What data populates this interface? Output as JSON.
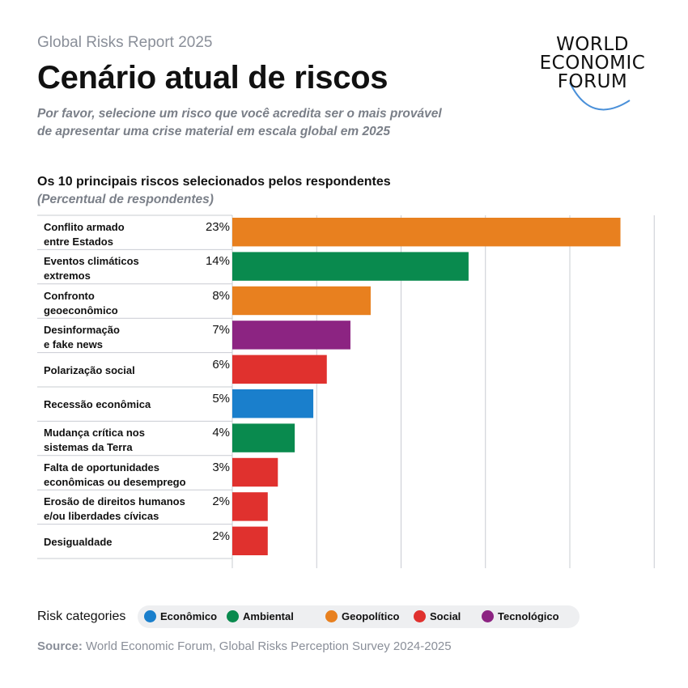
{
  "header": {
    "report": "Global Risks Report 2025",
    "title": "Cenário atual de riscos",
    "subtitle_line1": "Por favor, selecione um risco que você acredita ser o mais provável",
    "subtitle_line2": "de apresentar uma crise material em escala global em 2025"
  },
  "logo": {
    "line1": "WORLD",
    "line2": "ECONOMIC",
    "line3": "FORUM",
    "arc_color": "#4a90d9"
  },
  "chart_data": {
    "type": "bar",
    "orientation": "horizontal",
    "title": "Os 10 principais riscos selecionados pelos respondentes",
    "subtitle": "(Percentual de respondentes)",
    "xlim": [
      0,
      25
    ],
    "grid": true,
    "rows": [
      {
        "label1": "Conflito armado",
        "label2": "entre Estados",
        "value": 23,
        "value_label": "23%",
        "category": "geopolitical"
      },
      {
        "label1": "Eventos climáticos",
        "label2": "extremos",
        "value": 14,
        "value_label": "14%",
        "category": "environmental"
      },
      {
        "label1": "Confronto",
        "label2": "geoeconômico",
        "value": 8.2,
        "value_label": "8%",
        "category": "geopolitical"
      },
      {
        "label1": "Desinformação",
        "label2": "e fake news",
        "value": 7,
        "value_label": "7%",
        "category": "technological"
      },
      {
        "label1": "Polarização social",
        "label2": "",
        "value": 5.6,
        "value_label": "6%",
        "category": "social"
      },
      {
        "label1": "Recessão econômica",
        "label2": "",
        "value": 4.8,
        "value_label": "5%",
        "category": "economic"
      },
      {
        "label1": "Mudança crítica nos",
        "label2": "sistemas da Terra",
        "value": 3.7,
        "value_label": "4%",
        "category": "environmental"
      },
      {
        "label1": "Falta de oportunidades",
        "label2": "econômicas ou desemprego",
        "value": 2.7,
        "value_label": "3%",
        "category": "social"
      },
      {
        "label1": "Erosão de direitos humanos",
        "label2": "e/ou liberdades cívicas",
        "value": 2.1,
        "value_label": "2%",
        "category": "social"
      },
      {
        "label1": "Desigualdade",
        "label2": "",
        "value": 2.1,
        "value_label": "2%",
        "category": "social"
      }
    ],
    "colors": {
      "economic": "#1a7fcc",
      "environmental": "#098a4e",
      "geopolitical": "#e8801f",
      "social": "#e0312e",
      "technological": "#8c2482"
    }
  },
  "legend": {
    "title": "Risk categories",
    "items": [
      {
        "key": "economic",
        "label": "Econômico"
      },
      {
        "key": "environmental",
        "label": "Ambiental"
      },
      {
        "key": "geopolitical",
        "label": "Geopolítico"
      },
      {
        "key": "social",
        "label": "Social"
      },
      {
        "key": "technological",
        "label": "Tecnológico"
      }
    ]
  },
  "source": {
    "prefix": "Source:",
    "text": "World Economic Forum, Global Risks Perception Survey 2024-2025"
  }
}
